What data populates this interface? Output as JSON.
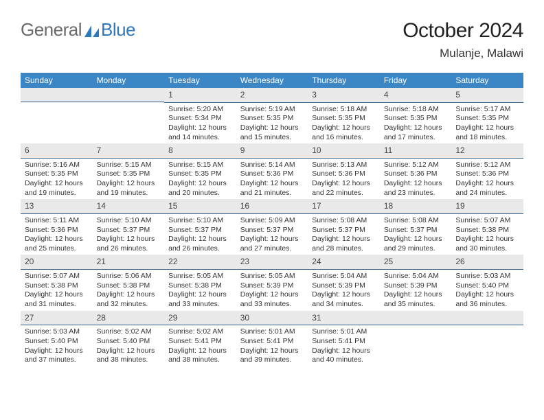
{
  "logo": {
    "textGeneral": "General",
    "textBlue": "Blue",
    "iconColor": "#2f78bb"
  },
  "title": {
    "month": "October 2024",
    "location": "Mulanje, Malawi"
  },
  "styles": {
    "headerBg": "#3d86c6",
    "daynumBg": "#e9e9e9",
    "daynumBorder": "#2f5d8a"
  },
  "dayNames": [
    "Sunday",
    "Monday",
    "Tuesday",
    "Wednesday",
    "Thursday",
    "Friday",
    "Saturday"
  ],
  "startOffset": 2,
  "days": [
    {
      "n": 1,
      "sunrise": "5:20 AM",
      "sunset": "5:34 PM",
      "daylight": "12 hours and 14 minutes."
    },
    {
      "n": 2,
      "sunrise": "5:19 AM",
      "sunset": "5:35 PM",
      "daylight": "12 hours and 15 minutes."
    },
    {
      "n": 3,
      "sunrise": "5:18 AM",
      "sunset": "5:35 PM",
      "daylight": "12 hours and 16 minutes."
    },
    {
      "n": 4,
      "sunrise": "5:18 AM",
      "sunset": "5:35 PM",
      "daylight": "12 hours and 17 minutes."
    },
    {
      "n": 5,
      "sunrise": "5:17 AM",
      "sunset": "5:35 PM",
      "daylight": "12 hours and 18 minutes."
    },
    {
      "n": 6,
      "sunrise": "5:16 AM",
      "sunset": "5:35 PM",
      "daylight": "12 hours and 19 minutes."
    },
    {
      "n": 7,
      "sunrise": "5:15 AM",
      "sunset": "5:35 PM",
      "daylight": "12 hours and 19 minutes."
    },
    {
      "n": 8,
      "sunrise": "5:15 AM",
      "sunset": "5:35 PM",
      "daylight": "12 hours and 20 minutes."
    },
    {
      "n": 9,
      "sunrise": "5:14 AM",
      "sunset": "5:36 PM",
      "daylight": "12 hours and 21 minutes."
    },
    {
      "n": 10,
      "sunrise": "5:13 AM",
      "sunset": "5:36 PM",
      "daylight": "12 hours and 22 minutes."
    },
    {
      "n": 11,
      "sunrise": "5:12 AM",
      "sunset": "5:36 PM",
      "daylight": "12 hours and 23 minutes."
    },
    {
      "n": 12,
      "sunrise": "5:12 AM",
      "sunset": "5:36 PM",
      "daylight": "12 hours and 24 minutes."
    },
    {
      "n": 13,
      "sunrise": "5:11 AM",
      "sunset": "5:36 PM",
      "daylight": "12 hours and 25 minutes."
    },
    {
      "n": 14,
      "sunrise": "5:10 AM",
      "sunset": "5:37 PM",
      "daylight": "12 hours and 26 minutes."
    },
    {
      "n": 15,
      "sunrise": "5:10 AM",
      "sunset": "5:37 PM",
      "daylight": "12 hours and 26 minutes."
    },
    {
      "n": 16,
      "sunrise": "5:09 AM",
      "sunset": "5:37 PM",
      "daylight": "12 hours and 27 minutes."
    },
    {
      "n": 17,
      "sunrise": "5:08 AM",
      "sunset": "5:37 PM",
      "daylight": "12 hours and 28 minutes."
    },
    {
      "n": 18,
      "sunrise": "5:08 AM",
      "sunset": "5:37 PM",
      "daylight": "12 hours and 29 minutes."
    },
    {
      "n": 19,
      "sunrise": "5:07 AM",
      "sunset": "5:38 PM",
      "daylight": "12 hours and 30 minutes."
    },
    {
      "n": 20,
      "sunrise": "5:07 AM",
      "sunset": "5:38 PM",
      "daylight": "12 hours and 31 minutes."
    },
    {
      "n": 21,
      "sunrise": "5:06 AM",
      "sunset": "5:38 PM",
      "daylight": "12 hours and 32 minutes."
    },
    {
      "n": 22,
      "sunrise": "5:05 AM",
      "sunset": "5:38 PM",
      "daylight": "12 hours and 33 minutes."
    },
    {
      "n": 23,
      "sunrise": "5:05 AM",
      "sunset": "5:39 PM",
      "daylight": "12 hours and 33 minutes."
    },
    {
      "n": 24,
      "sunrise": "5:04 AM",
      "sunset": "5:39 PM",
      "daylight": "12 hours and 34 minutes."
    },
    {
      "n": 25,
      "sunrise": "5:04 AM",
      "sunset": "5:39 PM",
      "daylight": "12 hours and 35 minutes."
    },
    {
      "n": 26,
      "sunrise": "5:03 AM",
      "sunset": "5:40 PM",
      "daylight": "12 hours and 36 minutes."
    },
    {
      "n": 27,
      "sunrise": "5:03 AM",
      "sunset": "5:40 PM",
      "daylight": "12 hours and 37 minutes."
    },
    {
      "n": 28,
      "sunrise": "5:02 AM",
      "sunset": "5:40 PM",
      "daylight": "12 hours and 38 minutes."
    },
    {
      "n": 29,
      "sunrise": "5:02 AM",
      "sunset": "5:41 PM",
      "daylight": "12 hours and 38 minutes."
    },
    {
      "n": 30,
      "sunrise": "5:01 AM",
      "sunset": "5:41 PM",
      "daylight": "12 hours and 39 minutes."
    },
    {
      "n": 31,
      "sunrise": "5:01 AM",
      "sunset": "5:41 PM",
      "daylight": "12 hours and 40 minutes."
    }
  ],
  "labels": {
    "sunrise": "Sunrise:",
    "sunset": "Sunset:",
    "daylight": "Daylight:"
  }
}
